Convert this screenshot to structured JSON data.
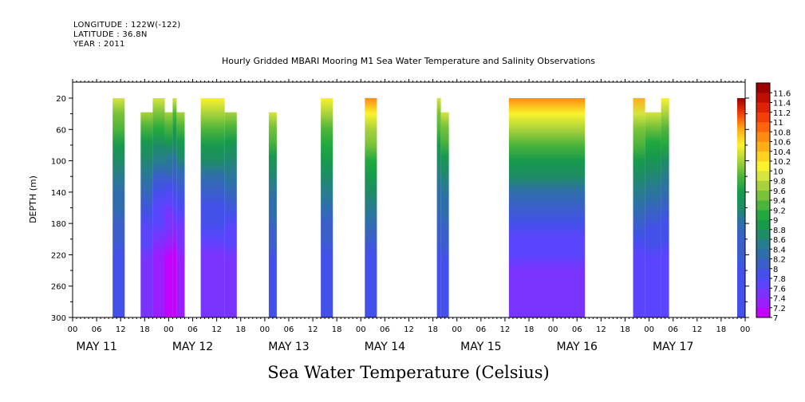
{
  "header": {
    "longitude": "LONGITUDE : 122W(-122)",
    "latitude": "LATITUDE : 36.8N",
    "year": "YEAR : 2011"
  },
  "chart_data": {
    "type": "heatmap",
    "title": "Hourly Gridded MBARI Mooring M1 Sea Water Temperature and Salinity Observations",
    "xlabel": "",
    "ylabel": "DEPTH (m)",
    "caption": "Sea Water Temperature (Celsius)",
    "x_hour_ticks": [
      "00",
      "06",
      "12",
      "18",
      "00",
      "06",
      "12",
      "18",
      "00",
      "06",
      "12",
      "18",
      "00",
      "06",
      "12",
      "18",
      "00",
      "06",
      "12",
      "18",
      "00",
      "06",
      "12",
      "18",
      "00",
      "06",
      "12",
      "18",
      "00"
    ],
    "x_day_labels": [
      "MAY 11",
      "MAY 12",
      "MAY 13",
      "MAY 14",
      "MAY 15",
      "MAY 16",
      "MAY 17"
    ],
    "x_range_hours": [
      0,
      168
    ],
    "y_ticks": [
      20,
      60,
      100,
      140,
      180,
      220,
      260,
      300
    ],
    "ylim": [
      300,
      20
    ],
    "colorbar": {
      "levels": [
        7,
        7.2,
        7.4,
        7.6,
        7.8,
        8,
        8.2,
        8.4,
        8.6,
        8.8,
        9,
        9.2,
        9.4,
        9.6,
        9.8,
        10,
        10.2,
        10.4,
        10.6,
        10.8,
        11,
        11.2,
        11.4,
        11.6
      ],
      "colors": [
        "#c400ff",
        "#9a1fff",
        "#7a33ff",
        "#5a44ff",
        "#4450ea",
        "#3a5fcb",
        "#2f6ead",
        "#277d8e",
        "#1e8c66",
        "#179a4c",
        "#22a83e",
        "#4cb43a",
        "#79c23a",
        "#a8d23c",
        "#d6e43e",
        "#fbf22c",
        "#ffd21f",
        "#ffae16",
        "#ff8a10",
        "#ff640b",
        "#f43e07",
        "#e02204",
        "#c20e02",
        "#9c0000"
      ]
    },
    "data_blocks": [
      {
        "start": "May 11 10:00",
        "end": "May 11 13:00",
        "min_depth": 20,
        "temp_range": [
          7.8,
          9.8
        ]
      },
      {
        "start": "May 11 17:00",
        "end": "May 11 20:00",
        "min_depth": 38,
        "temp_range": [
          7.4,
          9.6
        ]
      },
      {
        "start": "May 11 20:00",
        "end": "May 11 23:00",
        "min_depth": 20,
        "temp_range": [
          7.2,
          9.8
        ]
      },
      {
        "start": "May 11 23:00",
        "end": "May 12 01:00",
        "min_depth": 38,
        "temp_range": [
          7.0,
          9.6
        ]
      },
      {
        "start": "May 12 01:00",
        "end": "May 12 02:00",
        "min_depth": 20,
        "temp_range": [
          7.0,
          9.8
        ]
      },
      {
        "start": "May 12 02:00",
        "end": "May 12 04:00",
        "min_depth": 38,
        "temp_range": [
          7.2,
          9.6
        ]
      },
      {
        "start": "May 12 08:00",
        "end": "May 12 14:00",
        "min_depth": 20,
        "temp_range": [
          7.4,
          10.0
        ]
      },
      {
        "start": "May 12 14:00",
        "end": "May 12 17:00",
        "min_depth": 38,
        "temp_range": [
          7.4,
          9.6
        ]
      },
      {
        "start": "May 13 01:00",
        "end": "May 13 03:00",
        "min_depth": 38,
        "temp_range": [
          7.8,
          9.8
        ]
      },
      {
        "start": "May 13 14:00",
        "end": "May 13 17:00",
        "min_depth": 20,
        "temp_range": [
          7.8,
          10.0
        ]
      },
      {
        "start": "May 14 01:00",
        "end": "May 14 04:00",
        "min_depth": 20,
        "temp_range": [
          7.8,
          10.6
        ]
      },
      {
        "start": "May 14 19:00",
        "end": "May 14 20:00",
        "min_depth": 20,
        "temp_range": [
          7.8,
          9.8
        ]
      },
      {
        "start": "May 14 20:00",
        "end": "May 14 22:00",
        "min_depth": 38,
        "temp_range": [
          7.8,
          9.8
        ]
      },
      {
        "start": "May 15 13:00",
        "end": "May 16 08:00",
        "min_depth": 20,
        "temp_range": [
          7.4,
          10.6
        ]
      },
      {
        "start": "May 16 20:00",
        "end": "May 16 23:00",
        "min_depth": 20,
        "temp_range": [
          7.6,
          10.4
        ]
      },
      {
        "start": "May 16 23:00",
        "end": "May 17 03:00",
        "min_depth": 38,
        "temp_range": [
          7.6,
          9.8
        ]
      },
      {
        "start": "May 17 03:00",
        "end": "May 17 05:00",
        "min_depth": 20,
        "temp_range": [
          7.6,
          10.0
        ]
      },
      {
        "start": "May 17 22:00",
        "end": "May 18 00:00",
        "min_depth": 20,
        "temp_range": [
          7.8,
          11.6
        ]
      }
    ]
  }
}
